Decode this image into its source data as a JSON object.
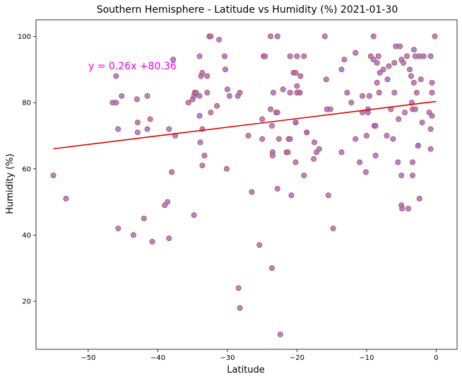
{
  "chart_data": {
    "type": "scatter",
    "title": "Southern Hemisphere - Latitude vs Humidity (%) 2021-01-30",
    "xlabel": "Latitude",
    "ylabel": "Humidity (%)",
    "xlim": [
      -57.5,
      3
    ],
    "ylim": [
      5.5,
      105
    ],
    "x_ticks": [
      -50,
      -40,
      -30,
      -20,
      -10,
      0
    ],
    "y_ticks": [
      20,
      40,
      60,
      80,
      100
    ],
    "x_tick_labels": [
      "−50",
      "−40",
      "−30",
      "−20",
      "−10",
      "0"
    ],
    "y_tick_labels": [
      "20",
      "40",
      "60",
      "80",
      "100"
    ],
    "grid": false,
    "marker_fill": "#8b7cc8",
    "marker_edge": "#e0393e",
    "regression": {
      "equation": "y = 0.26x +80.36",
      "slope": 0.26,
      "intercept": 80.36,
      "x_range": [
        -55,
        0
      ],
      "line_color": "#e00000",
      "text_color": "#ee00ee"
    },
    "points": [
      [
        -55,
        58
      ],
      [
        -53.2,
        51
      ],
      [
        -46.5,
        80
      ],
      [
        -46,
        80
      ],
      [
        -46,
        88
      ],
      [
        -45.7,
        72
      ],
      [
        -45.7,
        42
      ],
      [
        -45.2,
        82
      ],
      [
        -43,
        81
      ],
      [
        -42.9,
        74
      ],
      [
        -42.9,
        71
      ],
      [
        -42,
        45
      ],
      [
        -41.5,
        72
      ],
      [
        -41.5,
        82
      ],
      [
        -41.1,
        75
      ],
      [
        -40.8,
        38
      ],
      [
        -43.5,
        40
      ],
      [
        -39,
        49
      ],
      [
        -38.6,
        50
      ],
      [
        -38.4,
        72
      ],
      [
        -38.4,
        39
      ],
      [
        -38,
        59
      ],
      [
        -37.8,
        93
      ],
      [
        -37.5,
        70
      ],
      [
        -35.6,
        80
      ],
      [
        -35,
        81
      ],
      [
        -34.8,
        82
      ],
      [
        -34.7,
        83
      ],
      [
        -34.5,
        83
      ],
      [
        -34.8,
        46
      ],
      [
        -34,
        94
      ],
      [
        -34,
        82
      ],
      [
        -34,
        76
      ],
      [
        -33.9,
        68
      ],
      [
        -33.8,
        88
      ],
      [
        -33.6,
        89
      ],
      [
        -33.6,
        72
      ],
      [
        -33.6,
        61
      ],
      [
        -33.3,
        64
      ],
      [
        -32.9,
        83
      ],
      [
        -32.9,
        88
      ],
      [
        -32.6,
        100
      ],
      [
        -32.4,
        100
      ],
      [
        -32.4,
        77
      ],
      [
        -31.5,
        79
      ],
      [
        -31.2,
        99
      ],
      [
        -30.4,
        94
      ],
      [
        -30.3,
        90
      ],
      [
        -30.1,
        60
      ],
      [
        -30,
        84
      ],
      [
        -29.7,
        82
      ],
      [
        -28.5,
        82
      ],
      [
        -28.2,
        83
      ],
      [
        -28.4,
        24
      ],
      [
        -28.2,
        18
      ],
      [
        -27,
        70
      ],
      [
        -26.5,
        53
      ],
      [
        -25,
        75
      ],
      [
        -25,
        69
      ],
      [
        -25.4,
        37
      ],
      [
        -24.8,
        94
      ],
      [
        -24.6,
        94
      ],
      [
        -23.8,
        78
      ],
      [
        -23.6,
        73
      ],
      [
        -23.5,
        65
      ],
      [
        -23.5,
        64
      ],
      [
        -23.4,
        83
      ],
      [
        -23.6,
        30
      ],
      [
        -23.8,
        100
      ],
      [
        -23,
        77
      ],
      [
        -22.8,
        77
      ],
      [
        -22.8,
        54
      ],
      [
        -22.8,
        100
      ],
      [
        -22.6,
        69
      ],
      [
        -22.4,
        10
      ],
      [
        -22,
        84
      ],
      [
        -21.5,
        65
      ],
      [
        -21.3,
        65
      ],
      [
        -21.2,
        69
      ],
      [
        -21,
        69
      ],
      [
        -21,
        94
      ],
      [
        -21,
        83
      ],
      [
        -20.8,
        52
      ],
      [
        -20.5,
        89
      ],
      [
        -20.2,
        89
      ],
      [
        -20,
        83
      ],
      [
        -20,
        85
      ],
      [
        -20.2,
        74
      ],
      [
        -20.2,
        74
      ],
      [
        -20.2,
        62
      ],
      [
        -20,
        94
      ],
      [
        -19.6,
        83
      ],
      [
        -19.6,
        83
      ],
      [
        -19.5,
        88
      ],
      [
        -19,
        94
      ],
      [
        -19,
        58
      ],
      [
        -18.6,
        71
      ],
      [
        -18.6,
        71
      ],
      [
        -17.6,
        63
      ],
      [
        -17.5,
        68
      ],
      [
        -17.2,
        65
      ],
      [
        -16.8,
        66
      ],
      [
        -16,
        100
      ],
      [
        -15.8,
        87
      ],
      [
        -15.7,
        78
      ],
      [
        -15.5,
        52
      ],
      [
        -15.2,
        78
      ],
      [
        -14.8,
        42
      ],
      [
        -13.6,
        65
      ],
      [
        -13.6,
        90
      ],
      [
        -13.2,
        93
      ],
      [
        -12.8,
        83
      ],
      [
        -12.2,
        80
      ],
      [
        -11.6,
        69
      ],
      [
        -11.6,
        95
      ],
      [
        -11,
        62
      ],
      [
        -10.6,
        77
      ],
      [
        -10.6,
        82
      ],
      [
        -10.1,
        59
      ],
      [
        -10,
        70
      ],
      [
        -9.8,
        77
      ],
      [
        -9.8,
        78
      ],
      [
        -9.6,
        82
      ],
      [
        -9.4,
        94
      ],
      [
        -9,
        93
      ],
      [
        -9,
        100
      ],
      [
        -8.9,
        73
      ],
      [
        -8.7,
        73
      ],
      [
        -8.7,
        64
      ],
      [
        -8.5,
        92
      ],
      [
        -8.5,
        86
      ],
      [
        -8.3,
        94
      ],
      [
        -8.1,
        89
      ],
      [
        -8.2,
        83
      ],
      [
        -7.6,
        90
      ],
      [
        -7.1,
        70
      ],
      [
        -7,
        87
      ],
      [
        -6.8,
        91
      ],
      [
        -6.5,
        78
      ],
      [
        -6.2,
        69
      ],
      [
        -6,
        92
      ],
      [
        -6,
        83
      ],
      [
        -5.8,
        97
      ],
      [
        -5.5,
        62
      ],
      [
        -5.4,
        75
      ],
      [
        -5.2,
        97
      ],
      [
        -5,
        93
      ],
      [
        -5,
        58
      ],
      [
        -5,
        49
      ],
      [
        -4.9,
        48
      ],
      [
        -4.7,
        92
      ],
      [
        -4.5,
        77
      ],
      [
        -4.2,
        94
      ],
      [
        -4,
        48
      ],
      [
        -3.8,
        90
      ],
      [
        -3.6,
        88
      ],
      [
        -3.5,
        80
      ],
      [
        -3.4,
        78
      ],
      [
        -3.4,
        62
      ],
      [
        -3.4,
        58
      ],
      [
        -3.2,
        96
      ],
      [
        -3.2,
        86
      ],
      [
        -3,
        78
      ],
      [
        -3,
        94
      ],
      [
        -2.8,
        83
      ],
      [
        -2.6,
        67
      ],
      [
        -2.6,
        67
      ],
      [
        -2.4,
        51
      ],
      [
        -2.4,
        94
      ],
      [
        -2.2,
        87
      ],
      [
        -2,
        74
      ],
      [
        -1.8,
        94
      ],
      [
        -1,
        77
      ],
      [
        -0.8,
        94
      ],
      [
        -0.8,
        72
      ],
      [
        -0.8,
        66
      ],
      [
        -0.6,
        86
      ],
      [
        -0.6,
        83
      ],
      [
        -0.6,
        76
      ],
      [
        -0.2,
        100
      ]
    ]
  }
}
